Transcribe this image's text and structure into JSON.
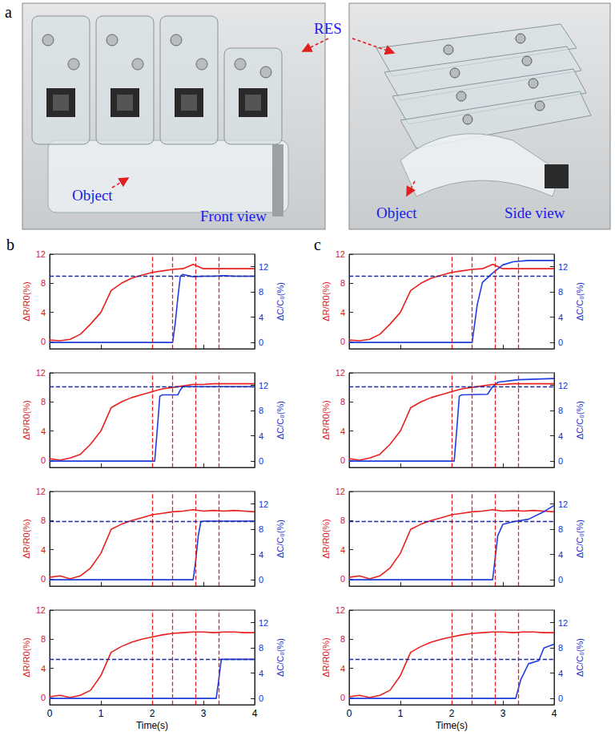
{
  "panel_a": {
    "label": "a",
    "pointer_label": "RES",
    "photos": [
      {
        "object_label": "Object",
        "caption": "Front view"
      },
      {
        "object_label": "Object",
        "caption": "Side view"
      }
    ]
  },
  "chart_data": [
    {
      "type": "line",
      "panel": "b",
      "y_label": "ΔR/R0(%)",
      "y2_label": "ΔC/C₀(%)",
      "xlim": [
        0,
        4
      ],
      "xticks": [
        0,
        1,
        2,
        3,
        4
      ],
      "ylim": [
        -1,
        12
      ],
      "yticks": [
        0,
        4,
        8,
        12
      ],
      "y2lim": [
        -1,
        14
      ],
      "y2ticks": [
        0,
        4,
        8,
        12
      ],
      "tick_labels": "y",
      "vlines": [
        2,
        2.4,
        2.85,
        3.3
      ],
      "hline_y2": 10.5,
      "series": [
        {
          "color": "#e8211e",
          "x": [
            0,
            0.2,
            0.4,
            0.6,
            0.8,
            1.0,
            1.2,
            1.4,
            1.6,
            1.8,
            2.0,
            2.2,
            2.4,
            2.6,
            2.8,
            3.0,
            3.2,
            3.4,
            3.6,
            3.8,
            4.0
          ],
          "values": [
            0.2,
            0.1,
            0.3,
            1.0,
            2.4,
            4.0,
            7.0,
            8.0,
            8.7,
            9.1,
            9.5,
            9.7,
            9.9,
            10.0,
            10.6,
            10.0,
            10.0,
            10.0,
            10.0,
            10.0,
            10.0
          ]
        },
        {
          "color": "#1f3de0",
          "axis": "y2",
          "x": [
            0,
            2.4,
            2.45,
            2.5,
            2.55,
            2.6,
            2.8,
            3.0,
            3.2,
            3.4,
            3.6,
            4.0
          ],
          "values": [
            0,
            0,
            3,
            7,
            10.5,
            10.8,
            10.4,
            10.5,
            10.5,
            10.6,
            10.5,
            10.5
          ]
        }
      ]
    },
    {
      "type": "line",
      "y_label": "ΔR/R0(%)",
      "y2_label": "ΔC/C₀(%)",
      "xlim": [
        0,
        4
      ],
      "xticks": [
        0,
        1,
        2,
        3,
        4
      ],
      "ylim": [
        -1,
        12
      ],
      "yticks": [
        0,
        4,
        8,
        12
      ],
      "y2lim": [
        -1,
        14
      ],
      "y2ticks": [
        0,
        4,
        8,
        12
      ],
      "tick_labels": "y",
      "vlines": [
        2,
        2.4,
        2.85,
        3.3
      ],
      "hline_y2": 11.8,
      "series": [
        {
          "color": "#e8211e",
          "x": [
            0,
            0.2,
            0.4,
            0.6,
            0.8,
            1.0,
            1.2,
            1.4,
            1.6,
            1.8,
            2.0,
            2.2,
            2.4,
            2.6,
            2.8,
            3.0,
            3.2,
            3.4,
            3.6,
            3.8,
            4.0
          ],
          "values": [
            0.2,
            0.0,
            0.3,
            0.8,
            2.2,
            4.0,
            7.2,
            8.0,
            8.6,
            9.0,
            9.4,
            9.8,
            10.0,
            10.2,
            10.4,
            10.4,
            10.5,
            10.5,
            10.5,
            10.5,
            10.5
          ]
        },
        {
          "color": "#1f3de0",
          "axis": "y2",
          "x": [
            0,
            2.05,
            2.1,
            2.15,
            2.2,
            2.5,
            2.55,
            2.6,
            3.0,
            3.5,
            4.0
          ],
          "values": [
            0,
            0,
            5,
            10.3,
            10.5,
            10.5,
            11.3,
            11.8,
            11.8,
            11.8,
            11.8
          ]
        }
      ]
    },
    {
      "type": "line",
      "y_label": "ΔR/R0(%)",
      "y2_label": "ΔC/C₀(%)",
      "xlim": [
        0,
        4
      ],
      "xticks": [
        0,
        1,
        2,
        3,
        4
      ],
      "ylim": [
        -1,
        12
      ],
      "yticks": [
        0,
        4,
        8,
        12
      ],
      "y2lim": [
        -1,
        14
      ],
      "y2ticks": [
        0,
        4,
        8,
        12
      ],
      "tick_labels": "y",
      "vlines": [
        2,
        2.4,
        2.85,
        3.3
      ],
      "hline_y2": 9.3,
      "series": [
        {
          "color": "#e8211e",
          "x": [
            0,
            0.2,
            0.4,
            0.6,
            0.8,
            1.0,
            1.2,
            1.4,
            1.6,
            1.8,
            2.0,
            2.2,
            2.4,
            2.6,
            2.8,
            3.0,
            3.2,
            3.4,
            3.6,
            3.8,
            4.0
          ],
          "values": [
            0.2,
            0.4,
            0.0,
            0.4,
            1.5,
            3.5,
            6.8,
            7.5,
            8.0,
            8.4,
            8.8,
            9.0,
            9.2,
            9.3,
            9.5,
            9.3,
            9.4,
            9.3,
            9.4,
            9.3,
            9.2
          ]
        },
        {
          "color": "#1f3de0",
          "axis": "y2",
          "x": [
            0,
            2.8,
            2.85,
            2.9,
            2.95,
            3.0,
            3.5,
            4.0
          ],
          "values": [
            0,
            0,
            3,
            7,
            9.2,
            9.3,
            9.3,
            9.3
          ]
        }
      ]
    },
    {
      "type": "line",
      "x_label": "Time(s)",
      "y_label": "ΔR/R0(%)",
      "y2_label": "ΔC/C₀(%)",
      "xlim": [
        0,
        4
      ],
      "xticks": [
        0,
        1,
        2,
        3,
        4
      ],
      "ylim": [
        -1,
        12
      ],
      "yticks": [
        0,
        4,
        8,
        12
      ],
      "y2lim": [
        -1,
        14
      ],
      "y2ticks": [
        0,
        4,
        8,
        12
      ],
      "tick_labels": true,
      "vlines": [
        2,
        2.4,
        2.85,
        3.3
      ],
      "hline_y2": 6.2,
      "series": [
        {
          "color": "#e8211e",
          "x": [
            0,
            0.2,
            0.4,
            0.6,
            0.8,
            1.0,
            1.2,
            1.4,
            1.6,
            1.8,
            2.0,
            2.2,
            2.4,
            2.6,
            2.8,
            3.0,
            3.2,
            3.4,
            3.6,
            3.8,
            4.0
          ],
          "values": [
            0.1,
            0.3,
            0.0,
            0.3,
            1.0,
            3.0,
            6.2,
            7.0,
            7.6,
            8.0,
            8.3,
            8.6,
            8.8,
            8.9,
            9.0,
            9.0,
            8.9,
            9.0,
            9.0,
            8.9,
            8.9
          ]
        },
        {
          "color": "#1f3de0",
          "axis": "y2",
          "x": [
            0,
            3.25,
            3.3,
            3.35,
            3.4,
            3.6,
            4.0
          ],
          "values": [
            0,
            0,
            3,
            6.2,
            6.2,
            6.2,
            6.2
          ]
        }
      ]
    },
    {
      "type": "line",
      "panel": "c",
      "y_label": "ΔR/R0(%)",
      "y2_label": "ΔC/C₀(%)",
      "xlim": [
        0,
        4
      ],
      "xticks": [
        0,
        1,
        2,
        3,
        4
      ],
      "ylim": [
        -1,
        12
      ],
      "yticks": [
        0,
        4,
        8,
        12
      ],
      "y2lim": [
        -1,
        14
      ],
      "y2ticks": [
        0,
        4,
        8,
        12
      ],
      "tick_labels": "y",
      "vlines": [
        2,
        2.4,
        2.85,
        3.3
      ],
      "hline_y2": 10.5,
      "series": [
        {
          "color": "#e8211e",
          "x": [
            0,
            0.2,
            0.4,
            0.6,
            0.8,
            1.0,
            1.2,
            1.4,
            1.6,
            1.8,
            2.0,
            2.2,
            2.4,
            2.6,
            2.8,
            3.0,
            3.2,
            3.4,
            3.6,
            3.8,
            4.0
          ],
          "values": [
            0.2,
            0.1,
            0.3,
            1.0,
            2.4,
            4.0,
            7.0,
            8.0,
            8.7,
            9.1,
            9.5,
            9.7,
            9.9,
            10.0,
            10.6,
            10.0,
            10.0,
            10.0,
            10.0,
            10.0,
            10.0
          ]
        },
        {
          "color": "#1f3de0",
          "axis": "y2",
          "x": [
            0,
            2.4,
            2.5,
            2.6,
            2.8,
            3.0,
            3.2,
            3.5,
            4.0
          ],
          "values": [
            0,
            0,
            6,
            9.5,
            11,
            12.3,
            12.8,
            13,
            13
          ]
        }
      ]
    },
    {
      "type": "line",
      "y_label": "ΔR/R0(%)",
      "y2_label": "ΔC/C₀(%)",
      "xlim": [
        0,
        4
      ],
      "xticks": [
        0,
        1,
        2,
        3,
        4
      ],
      "ylim": [
        -1,
        12
      ],
      "yticks": [
        0,
        4,
        8,
        12
      ],
      "y2lim": [
        -1,
        14
      ],
      "y2ticks": [
        0,
        4,
        8,
        12
      ],
      "tick_labels": "y",
      "vlines": [
        2,
        2.4,
        2.85,
        3.3
      ],
      "hline_y2": 11.8,
      "series": [
        {
          "color": "#e8211e",
          "x": [
            0,
            0.2,
            0.4,
            0.6,
            0.8,
            1.0,
            1.2,
            1.4,
            1.6,
            1.8,
            2.0,
            2.2,
            2.4,
            2.6,
            2.8,
            3.0,
            3.2,
            3.4,
            3.6,
            3.8,
            4.0
          ],
          "values": [
            0.2,
            0.0,
            0.3,
            0.8,
            2.2,
            4.0,
            7.2,
            8.0,
            8.6,
            9.0,
            9.4,
            9.8,
            10.0,
            10.2,
            10.4,
            10.4,
            10.5,
            10.5,
            10.5,
            10.5,
            10.5
          ]
        },
        {
          "color": "#1f3de0",
          "axis": "y2",
          "x": [
            0,
            2.05,
            2.1,
            2.15,
            2.2,
            2.7,
            2.8,
            2.9,
            3.3,
            4.0
          ],
          "values": [
            0,
            0,
            5,
            10.3,
            10.5,
            10.6,
            11.8,
            12.5,
            12.9,
            13.1
          ]
        }
      ]
    },
    {
      "type": "line",
      "y_label": "ΔR/R0(%)",
      "y2_label": "ΔC/C₀(%)",
      "xlim": [
        0,
        4
      ],
      "xticks": [
        0,
        1,
        2,
        3,
        4
      ],
      "ylim": [
        -1,
        12
      ],
      "yticks": [
        0,
        4,
        8,
        12
      ],
      "y2lim": [
        -1,
        14
      ],
      "y2ticks": [
        0,
        4,
        8,
        12
      ],
      "tick_labels": "y",
      "vlines": [
        2,
        2.4,
        2.85,
        3.3
      ],
      "hline_y2": 9.3,
      "series": [
        {
          "color": "#e8211e",
          "x": [
            0,
            0.2,
            0.4,
            0.6,
            0.8,
            1.0,
            1.2,
            1.4,
            1.6,
            1.8,
            2.0,
            2.2,
            2.4,
            2.6,
            2.8,
            3.0,
            3.2,
            3.4,
            3.6,
            3.8,
            4.0
          ],
          "values": [
            0.2,
            0.4,
            0.0,
            0.4,
            1.5,
            3.5,
            6.8,
            7.5,
            8.0,
            8.4,
            8.8,
            9.0,
            9.2,
            9.3,
            9.5,
            9.3,
            9.4,
            9.3,
            9.4,
            9.3,
            9.2
          ]
        },
        {
          "color": "#1f3de0",
          "axis": "y2",
          "x": [
            0,
            2.8,
            2.9,
            3.0,
            3.2,
            3.5,
            3.8,
            4.0
          ],
          "values": [
            0,
            0,
            7,
            8.8,
            9.2,
            9.6,
            10.8,
            11.8
          ]
        }
      ]
    },
    {
      "type": "line",
      "x_label": "Time(s)",
      "y_label": "ΔR/R0(%)",
      "y2_label": "ΔC/C₀(%)",
      "xlim": [
        0,
        4
      ],
      "xticks": [
        0,
        1,
        2,
        3,
        4
      ],
      "ylim": [
        -1,
        12
      ],
      "yticks": [
        0,
        4,
        8,
        12
      ],
      "y2lim": [
        -1,
        14
      ],
      "y2ticks": [
        0,
        4,
        8,
        12
      ],
      "tick_labels": true,
      "vlines": [
        2,
        2.4,
        2.85,
        3.3
      ],
      "hline_y2": 6.2,
      "series": [
        {
          "color": "#e8211e",
          "x": [
            0,
            0.2,
            0.4,
            0.6,
            0.8,
            1.0,
            1.2,
            1.4,
            1.6,
            1.8,
            2.0,
            2.2,
            2.4,
            2.6,
            2.8,
            3.0,
            3.2,
            3.4,
            3.6,
            3.8,
            4.0
          ],
          "values": [
            0.1,
            0.3,
            0.0,
            0.3,
            1.0,
            3.0,
            6.2,
            7.0,
            7.6,
            8.0,
            8.3,
            8.6,
            8.8,
            8.9,
            9.0,
            9.0,
            8.9,
            9.0,
            9.0,
            8.9,
            8.9
          ]
        },
        {
          "color": "#1f3de0",
          "axis": "y2",
          "x": [
            0,
            3.25,
            3.35,
            3.5,
            3.7,
            3.8,
            4.0
          ],
          "values": [
            0,
            0,
            3,
            5.5,
            6,
            8,
            8.6
          ]
        }
      ]
    }
  ]
}
